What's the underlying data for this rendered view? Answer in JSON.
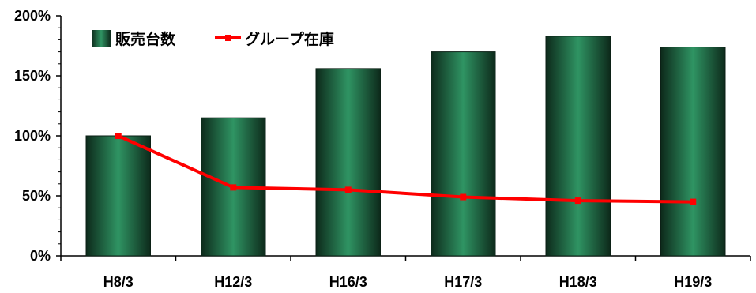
{
  "chart_data": {
    "type": "bar",
    "categories": [
      "H8/3",
      "H12/3",
      "H16/3",
      "H17/3",
      "H18/3",
      "H19/3"
    ],
    "series": [
      {
        "name": "販売台数",
        "type": "bar",
        "color": "#2e8b57",
        "values": [
          100,
          115,
          156,
          170,
          183,
          174
        ]
      },
      {
        "name": "グループ在庫",
        "type": "line",
        "color": "#ff0000",
        "values": [
          100,
          57,
          55,
          49,
          46,
          45
        ]
      }
    ],
    "ylim": [
      0,
      200
    ],
    "yticks": [
      "0%",
      "50%",
      "100%",
      "150%",
      "200%"
    ],
    "legend": "top-left",
    "grid": false
  }
}
